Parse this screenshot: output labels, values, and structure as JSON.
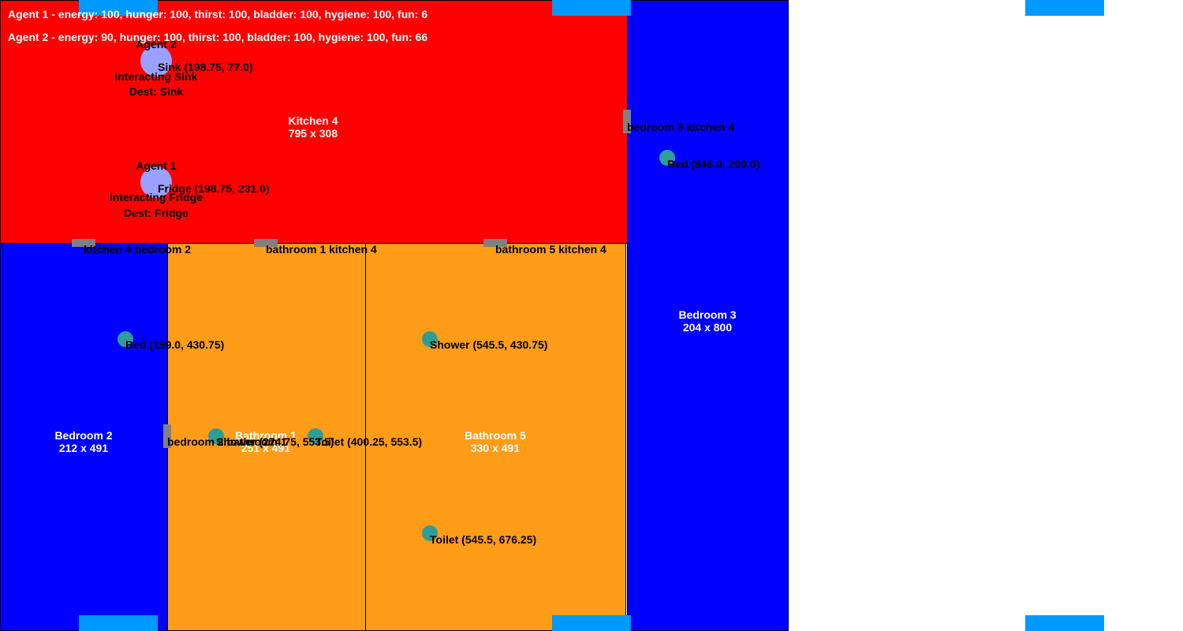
{
  "colors": {
    "kitchen": "#ff0000",
    "bedroom": "#0000ff",
    "bathroom": "#ff9c18",
    "window": "#0099ff",
    "door": "#808080",
    "object": "#2f9d96",
    "agent": "#9aa0ff"
  },
  "status": {
    "agent1": "Agent 1 - energy: 100, hunger: 100, thirst: 100, bladder: 100, hygiene: 100, fun: 6",
    "agent2": "Agent 2 - energy: 90, hunger: 100, thirst: 100, bladder: 100, hygiene: 100, fun: 66"
  },
  "rooms": {
    "kitchen": {
      "name": "Kitchen 4",
      "size": "795 x 308"
    },
    "bedroom2": {
      "name": "Bedroom 2",
      "size": "212 x 491"
    },
    "bathroom1": {
      "name": "Bathroom 1",
      "size": "251 x 491"
    },
    "bathroom5": {
      "name": "Bathroom 5",
      "size": "330 x 491"
    },
    "bedroom3": {
      "name": "Bedroom 3",
      "size": "204 x 800"
    }
  },
  "doors": {
    "bedroom3_kitchen4": "bedroom 3 kitchen 4",
    "kitchen4_bedroom2": "kitchen 4 bedroom 2",
    "bathroom1_kitchen4": "bathroom 1 kitchen 4",
    "bathroom5_kitchen4": "bathroom 5 kitchen 4",
    "bedroom2_bathroom1": "bedroom 2 bathroom 1"
  },
  "objects": {
    "sink": "Sink (198.75, 77.0)",
    "fridge": "Fridge (198.75, 231.0)",
    "bed3": "Bed (846.0, 200.0)",
    "bed2": "Bed (159.0, 430.75)",
    "shower1": "Shower (274.75, 553.5)",
    "toilet1": "Toilet (400.25, 553.5)",
    "shower5": "Shower (545.5, 430.75)",
    "toilet5": "Toilet (545.5, 676.25)"
  },
  "agents": {
    "agent2": {
      "name": "Agent 2",
      "action": "interacting Sink",
      "dest": "Dest: Sink"
    },
    "agent1": {
      "name": "Agent 1",
      "action": "interacting Fridge",
      "dest": "Dest: Fridge"
    }
  }
}
